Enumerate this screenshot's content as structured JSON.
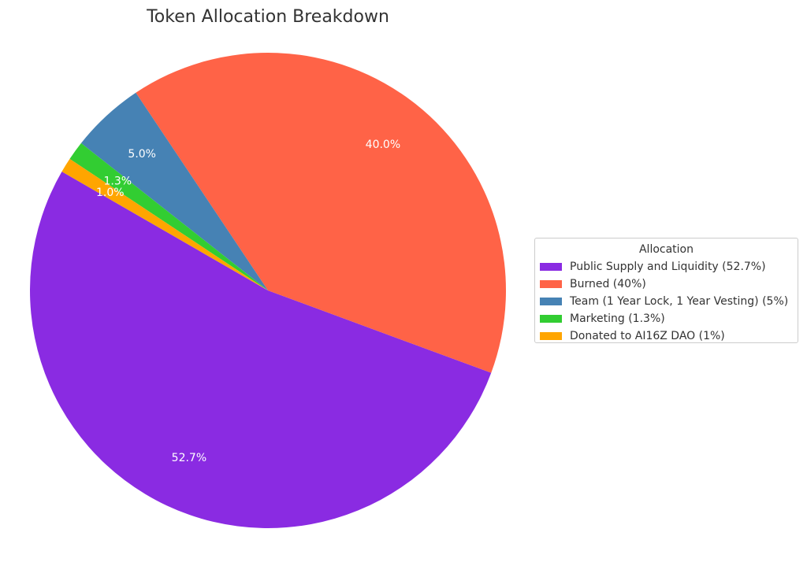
{
  "chart_data": {
    "type": "pie",
    "title": "Token Allocation Breakdown",
    "legend_title": "Allocation",
    "legend_position": "right",
    "start_angle_deg": 150,
    "direction": "counterclockwise",
    "slices": [
      {
        "legend": "Public Supply and Liquidity (52.7%)",
        "value": 52.7,
        "pct_label": "52.7%",
        "color": "#8A2BE2"
      },
      {
        "legend": "Burned (40%)",
        "value": 40,
        "pct_label": "40.0%",
        "color": "#FF6347"
      },
      {
        "legend": "Team (1 Year Lock, 1 Year Vesting) (5%)",
        "value": 5,
        "pct_label": "5.0%",
        "color": "#4682B4"
      },
      {
        "legend": "Marketing (1.3%)",
        "value": 1.3,
        "pct_label": "1.3%",
        "color": "#32CD32"
      },
      {
        "legend": "Donated to AI16Z DAO (1%)",
        "value": 1,
        "pct_label": "1.0%",
        "color": "#FFA500"
      }
    ]
  }
}
